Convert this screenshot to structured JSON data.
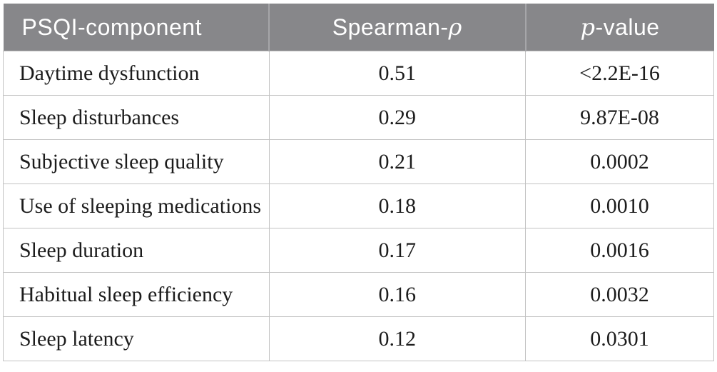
{
  "chart_data": {
    "type": "table",
    "columns": [
      "PSQI-component",
      "Spearman-ρ",
      "p-value"
    ],
    "rows": [
      [
        "Daytime dysfunction",
        0.51,
        "<2.2E-16"
      ],
      [
        "Sleep disturbances",
        0.29,
        "9.87E-08"
      ],
      [
        "Subjective sleep quality",
        0.21,
        "0.0002"
      ],
      [
        "Use of sleeping medications",
        0.18,
        "0.0010"
      ],
      [
        "Sleep duration",
        0.17,
        "0.0016"
      ],
      [
        "Habitual sleep efficiency",
        0.16,
        "0.0032"
      ],
      [
        "Sleep latency",
        0.12,
        "0.0301"
      ]
    ],
    "layout_hints": {
      "header_align": "col1 left, col2 center, col3 center",
      "body_align": "col1 left, col2 center, col3 center",
      "grid": "on"
    }
  },
  "header": {
    "col1": {
      "text": "PSQI-component"
    },
    "col2": {
      "text": "Spearman-",
      "italic": "ρ"
    },
    "col3": {
      "italic": "p",
      "text": "-value"
    }
  },
  "rows": [
    {
      "component": "Daytime dysfunction",
      "rho": "0.51",
      "p": "<2.2E-16"
    },
    {
      "component": "Sleep disturbances",
      "rho": "0.29",
      "p": "9.87E-08"
    },
    {
      "component": "Subjective sleep quality",
      "rho": "0.21",
      "p": "0.0002"
    },
    {
      "component": "Use of sleeping medications",
      "rho": "0.18",
      "p": "0.0010"
    },
    {
      "component": "Sleep duration",
      "rho": "0.17",
      "p": "0.0016"
    },
    {
      "component": "Habitual sleep efficiency",
      "rho": "0.16",
      "p": "0.0032"
    },
    {
      "component": "Sleep latency",
      "rho": "0.12",
      "p": "0.0301"
    }
  ],
  "colors": {
    "header_bg": "#87878a",
    "header_text": "#ffffff",
    "header_separator": "#a6a6a9",
    "grid_line": "#c3c3c3",
    "body_text": "#1c1c1c",
    "background": "#ffffff"
  }
}
